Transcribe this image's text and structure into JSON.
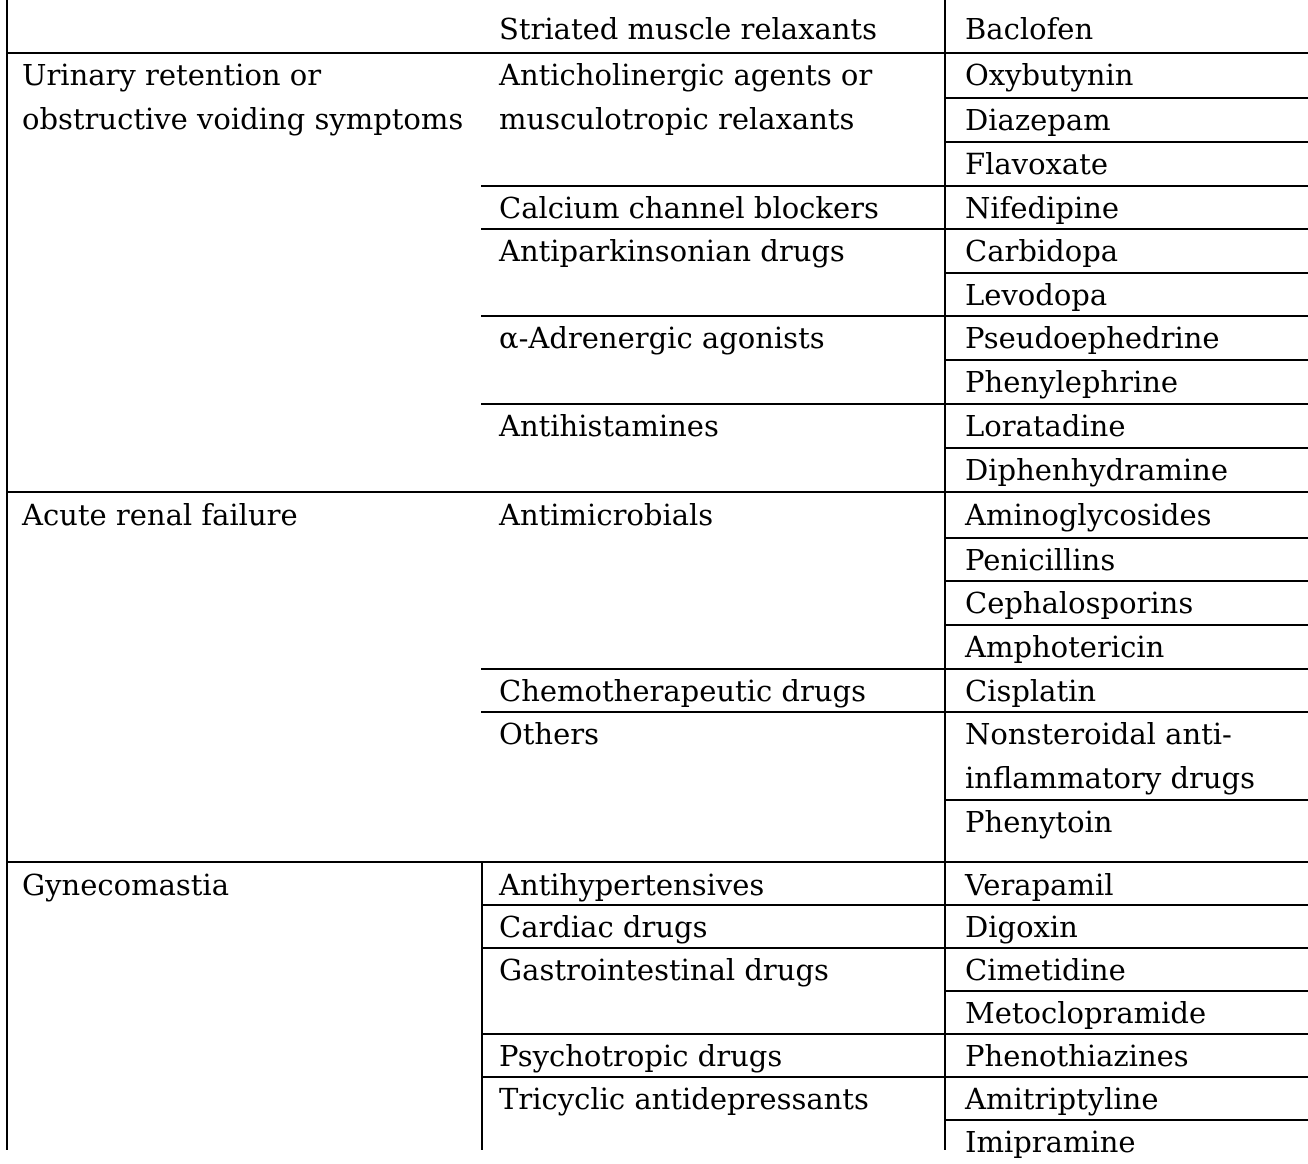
{
  "table": {
    "rows": [
      {
        "condition": "",
        "drug_class": "Striated muscle relaxants",
        "agents": [
          "Baclofen"
        ]
      },
      {
        "condition": "Urinary retention or obstructive voiding symptoms",
        "drug_class": "Anticholinergic agents or musculotropic relaxants",
        "agents": [
          "Oxybutynin",
          "Diazepam",
          "Flavoxate"
        ]
      },
      {
        "condition": "",
        "drug_class": "Calcium channel blockers",
        "agents": [
          "Nifedipine"
        ]
      },
      {
        "condition": "",
        "drug_class": "Antiparkinsonian drugs",
        "agents": [
          "Carbidopa",
          "Levodopa"
        ]
      },
      {
        "condition": "",
        "drug_class": "α-Adrenergic agonists",
        "agents": [
          "Pseudoephedrine",
          "Phenylephrine"
        ]
      },
      {
        "condition": "",
        "drug_class": "Antihistamines",
        "agents": [
          "Loratadine",
          "Diphenhydramine"
        ]
      },
      {
        "condition": "Acute renal failure",
        "drug_class": "Antimicrobials",
        "agents": [
          "Aminoglycosides",
          "Penicillins",
          "Cephalosporins",
          "Amphotericin"
        ]
      },
      {
        "condition": "",
        "drug_class": "Chemotherapeutic drugs",
        "agents": [
          "Cisplatin"
        ]
      },
      {
        "condition": "",
        "drug_class": "Others",
        "agents": [
          "Nonsteroidal anti-inflammatory drugs",
          "Phenytoin"
        ]
      },
      {
        "condition": "Gynecomastia",
        "drug_class": "Antihypertensives",
        "agents": [
          "Verapamil"
        ]
      },
      {
        "condition": "",
        "drug_class": "Cardiac drugs",
        "agents": [
          "Digoxin"
        ]
      },
      {
        "condition": "",
        "drug_class": "Gastrointestinal drugs",
        "agents": [
          "Cimetidine",
          "Metoclopramide"
        ]
      },
      {
        "condition": "",
        "drug_class": "Psychotropic drugs",
        "agents": [
          "Phenothiazines"
        ]
      },
      {
        "condition": "",
        "drug_class": "Tricyclic antidepressants",
        "agents": [
          "Amitriptyline",
          "Imipramine"
        ]
      }
    ],
    "display": {
      "condition_lines": {
        "urinary_1": "Urinary retention or",
        "urinary_2": "obstructive voiding symptoms"
      },
      "class_lines": {
        "anticholinergic_1": "Anticholinergic agents or",
        "anticholinergic_2": "musculotropic relaxants"
      },
      "agent_lines": {
        "nsaid_1": "Nonsteroidal anti-",
        "nsaid_2": "inflammatory drugs"
      }
    }
  }
}
